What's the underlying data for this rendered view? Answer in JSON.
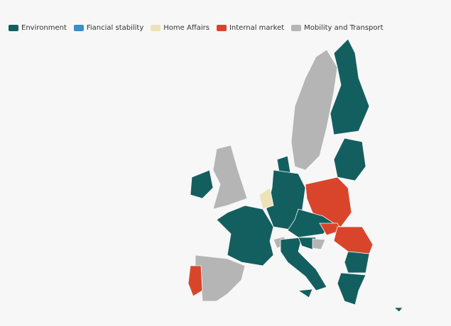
{
  "legend": [
    {
      "label": "Environment",
      "color": "#135f60"
    },
    {
      "label": "Fiancial stability",
      "color": "#3a8fc7"
    },
    {
      "label": "Home Affairs",
      "color": "#ede3b8"
    },
    {
      "label": "Internal market",
      "color": "#d9452b"
    },
    {
      "label": "Mobility and Transport",
      "color": "#b5b5b5"
    }
  ]
}
